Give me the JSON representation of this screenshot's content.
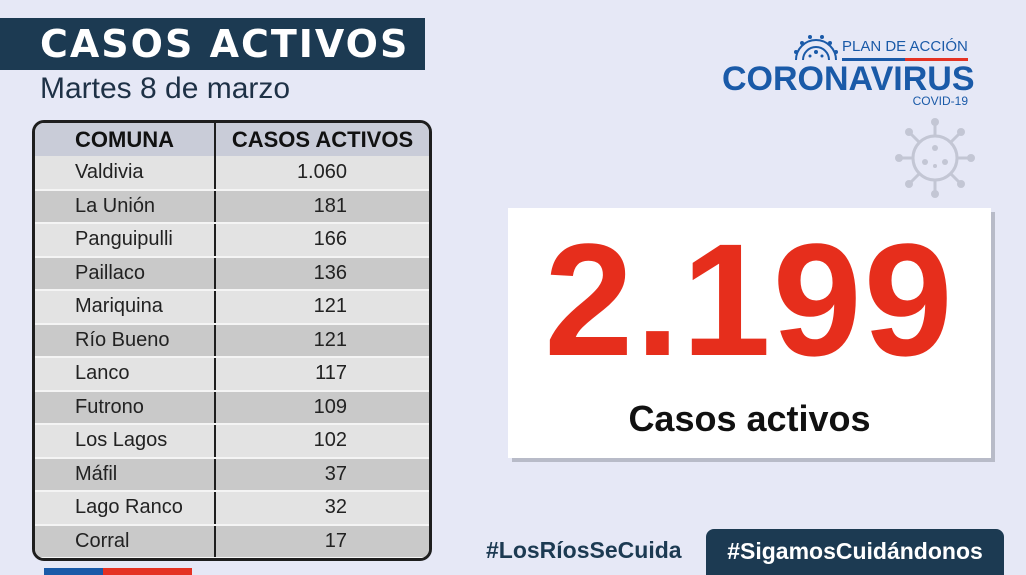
{
  "header": {
    "title": "CASOS ACTIVOS",
    "date": "Martes 8 de marzo"
  },
  "table": {
    "headers": [
      "COMUNA",
      "CASOS ACTIVOS"
    ],
    "rows": [
      {
        "comuna": "Valdivia",
        "casos": "1.060"
      },
      {
        "comuna": "La Unión",
        "casos": "181"
      },
      {
        "comuna": "Panguipulli",
        "casos": "166"
      },
      {
        "comuna": "Paillaco",
        "casos": "136"
      },
      {
        "comuna": "Mariquina",
        "casos": "121"
      },
      {
        "comuna": "Río Bueno",
        "casos": "121"
      },
      {
        "comuna": "Lanco",
        "casos": "117"
      },
      {
        "comuna": "Futrono",
        "casos": "109"
      },
      {
        "comuna": "Los Lagos",
        "casos": "102"
      },
      {
        "comuna": "Máfil",
        "casos": "37"
      },
      {
        "comuna": "Lago Ranco",
        "casos": "32"
      },
      {
        "comuna": "Corral",
        "casos": "17"
      }
    ]
  },
  "logo": {
    "plan": "PLAN DE ACCIÓN",
    "name": "CORONAVIRUS",
    "sub": "COVID-19",
    "icon": "virus-icon"
  },
  "total": {
    "number": "2.199",
    "label": "Casos activos"
  },
  "footer": {
    "hashtag_left": "#LosRíosSeCuida",
    "hashtag_right": "#SigamosCuidándonos"
  },
  "colors": {
    "navy": "#1c3a52",
    "accent_red": "#e62e1c",
    "brand_blue": "#1a5aa8",
    "background": "#e6e8f6"
  }
}
